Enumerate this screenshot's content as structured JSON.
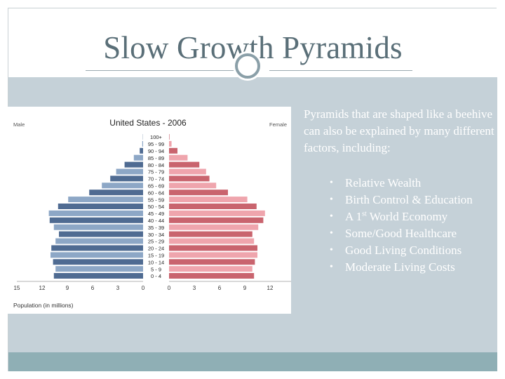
{
  "slide": {
    "title": "Slow Growth Pyramids",
    "intro_text": "Pyramids that are shaped like a beehive can also be explained by many different factors, including:",
    "bullets": [
      {
        "text": "Relative Wealth"
      },
      {
        "text": "Birth Control & Education"
      },
      {
        "text": "A 1",
        "sup": "st",
        "suffix": " World Economy"
      },
      {
        "text": "Some/Good Healthcare"
      },
      {
        "text": "Good Living Conditions"
      },
      {
        "text": "Moderate Living Costs"
      }
    ],
    "bullet_glyph": "•"
  },
  "colors": {
    "male_light": "#8da7c6",
    "male_dark": "#4f6b92",
    "female_light": "#efa5ad",
    "female_dark": "#c9646e",
    "content_bg": "#c5d1d8",
    "footer_bg": "#8fafb5",
    "title_color": "#5a6f78"
  },
  "chart_data": {
    "type": "bar",
    "title": "United States - 2006",
    "left_label": "Male",
    "right_label": "Female",
    "xlabel": "Population (in millions)",
    "xlim": [
      -15,
      15
    ],
    "x_ticks": [
      "15",
      "12",
      "9",
      "6",
      "3",
      "0",
      "0",
      "3",
      "6",
      "9",
      "12",
      "15"
    ],
    "categories": [
      "100+",
      "95 - 99",
      "90 - 94",
      "85 - 89",
      "80 - 84",
      "75 - 79",
      "70 - 74",
      "65 - 69",
      "60 - 64",
      "55 - 59",
      "50 - 54",
      "45 - 49",
      "40 - 44",
      "35 - 39",
      "30 - 34",
      "25 - 29",
      "20 - 24",
      "15 - 19",
      "10 - 14",
      "5 - 9",
      "0 - 4"
    ],
    "series": [
      {
        "name": "Male",
        "values": [
          0.02,
          0.1,
          0.4,
          1.1,
          2.2,
          3.2,
          3.9,
          4.9,
          6.4,
          8.9,
          10.1,
          11.2,
          11.1,
          10.6,
          10.0,
          10.4,
          10.9,
          11.0,
          10.7,
          10.4,
          10.6
        ]
      },
      {
        "name": "Female",
        "values": [
          0.05,
          0.3,
          1.0,
          2.2,
          3.6,
          4.4,
          4.8,
          5.6,
          7.0,
          9.3,
          10.4,
          11.4,
          11.2,
          10.6,
          9.9,
          10.1,
          10.5,
          10.5,
          10.2,
          9.9,
          10.1
        ]
      }
    ]
  }
}
